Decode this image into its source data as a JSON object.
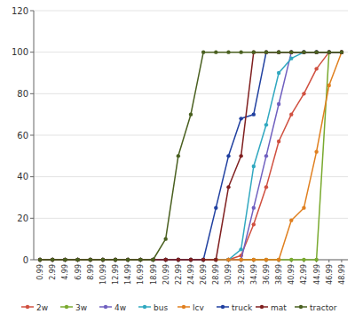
{
  "chart_data": {
    "type": "line",
    "categories": [
      "0.99",
      "2.99",
      "4.99",
      "6.99",
      "8.99",
      "10.99",
      "12.99",
      "14.99",
      "16.99",
      "18.99",
      "20.99",
      "22.99",
      "24.99",
      "26.99",
      "28.99",
      "30.99",
      "32.99",
      "34.99",
      "36.99",
      "38.99",
      "40.99",
      "42.99",
      "44.99",
      "46.99",
      "48.99"
    ],
    "series": [
      {
        "name": "2w",
        "color": "#d05040",
        "values": [
          0,
          0,
          0,
          0,
          0,
          0,
          0,
          0,
          0,
          0,
          0,
          0,
          0,
          0,
          0,
          0,
          2,
          17,
          35,
          57,
          70,
          80,
          92,
          100,
          100
        ]
      },
      {
        "name": "3w",
        "color": "#7aaa30",
        "values": [
          0,
          0,
          0,
          0,
          0,
          0,
          0,
          0,
          0,
          0,
          0,
          0,
          0,
          0,
          0,
          0,
          0,
          0,
          0,
          0,
          0,
          0,
          0,
          100,
          100
        ]
      },
      {
        "name": "4w",
        "color": "#7060c0",
        "values": [
          0,
          0,
          0,
          0,
          0,
          0,
          0,
          0,
          0,
          0,
          0,
          0,
          0,
          0,
          0,
          0,
          0,
          25,
          50,
          75,
          100,
          100,
          100,
          100,
          100
        ]
      },
      {
        "name": "bus",
        "color": "#30a8c0",
        "values": [
          0,
          0,
          0,
          0,
          0,
          0,
          0,
          0,
          0,
          0,
          0,
          0,
          0,
          0,
          0,
          0,
          5,
          45,
          65,
          90,
          97,
          100,
          100,
          100,
          100
        ]
      },
      {
        "name": "lcv",
        "color": "#e08020",
        "values": [
          0,
          0,
          0,
          0,
          0,
          0,
          0,
          0,
          0,
          0,
          0,
          0,
          0,
          0,
          0,
          0,
          0,
          0,
          0,
          0,
          19,
          25,
          52,
          84,
          100
        ]
      },
      {
        "name": "truck",
        "color": "#2040a0",
        "values": [
          0,
          0,
          0,
          0,
          0,
          0,
          0,
          0,
          0,
          0,
          0,
          0,
          0,
          0,
          25,
          50,
          68,
          70,
          100,
          100,
          100,
          100,
          100,
          100,
          100
        ]
      },
      {
        "name": "mat",
        "color": "#802020",
        "values": [
          0,
          0,
          0,
          0,
          0,
          0,
          0,
          0,
          0,
          0,
          0,
          0,
          0,
          0,
          0,
          35,
          50,
          100,
          100,
          100,
          100,
          100,
          100,
          100,
          100
        ]
      },
      {
        "name": "tractor",
        "color": "#4a6020",
        "values": [
          0,
          0,
          0,
          0,
          0,
          0,
          0,
          0,
          0,
          0,
          10,
          50,
          70,
          100,
          100,
          100,
          100,
          100,
          100,
          100,
          100,
          100,
          100,
          100,
          100
        ]
      }
    ],
    "ylim": [
      0,
      120
    ],
    "yticks": [
      0,
      20,
      40,
      60,
      80,
      100,
      120
    ],
    "grid": true,
    "legend": "bottom",
    "marker": "circle"
  }
}
